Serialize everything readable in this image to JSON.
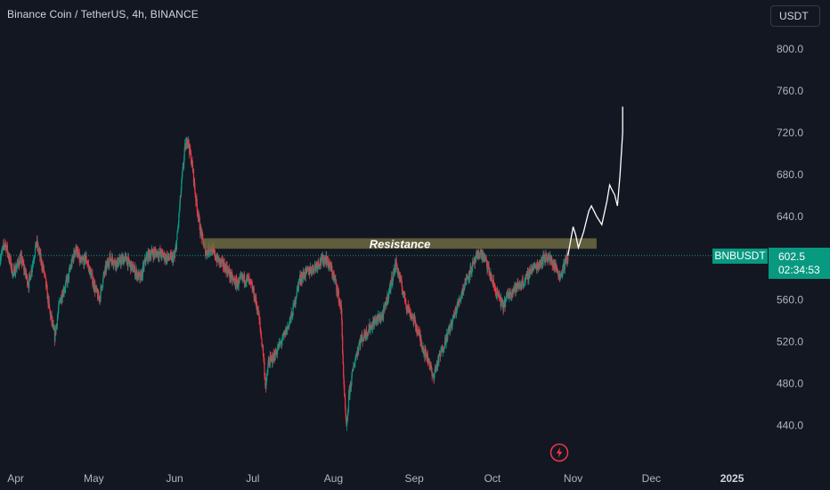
{
  "header": {
    "title": "Binance Coin / TetherUS, 4h, BINANCE",
    "currency": "USDT"
  },
  "last_price": {
    "symbol": "BNBUSDT",
    "price": "602.5",
    "countdown": "02:34:53"
  },
  "annotations": {
    "resistance_label": "Resistance",
    "resistance_low": 609,
    "resistance_high": 619
  },
  "colors": {
    "background": "#131722",
    "up": "#089981",
    "down": "#f23645",
    "resistance": "#6d6a3f",
    "axis_text": "#b2b5be",
    "projection": "#ffffff"
  },
  "icons": {
    "alert": "lightning-bolt-icon"
  },
  "chart_data": {
    "type": "candlestick",
    "title": "Binance Coin / TetherUS, 4h, BINANCE",
    "xlabel": "",
    "ylabel": "",
    "ylim": [
      402,
      847
    ],
    "y_ticks": [
      {
        "value": 800,
        "label": "800.0"
      },
      {
        "value": 760,
        "label": "760.0"
      },
      {
        "value": 720,
        "label": "720.0"
      },
      {
        "value": 680,
        "label": "680.0"
      },
      {
        "value": 640,
        "label": "640.0"
      },
      {
        "value": 560,
        "label": "560.0"
      },
      {
        "value": 520,
        "label": "520.0"
      },
      {
        "value": 480,
        "label": "480.0"
      },
      {
        "value": 440,
        "label": "440.0"
      }
    ],
    "x_range": [
      "2024-03-26",
      "2025-01-15"
    ],
    "x_ticks": [
      {
        "date": "2024-04-01",
        "label": "Apr",
        "bold": false
      },
      {
        "date": "2024-05-01",
        "label": "May",
        "bold": false
      },
      {
        "date": "2024-06-01",
        "label": "Jun",
        "bold": false
      },
      {
        "date": "2024-07-01",
        "label": "Jul",
        "bold": false
      },
      {
        "date": "2024-08-01",
        "label": "Aug",
        "bold": false
      },
      {
        "date": "2024-09-01",
        "label": "Sep",
        "bold": false
      },
      {
        "date": "2024-10-01",
        "label": "Oct",
        "bold": false
      },
      {
        "date": "2024-11-01",
        "label": "Nov",
        "bold": false
      },
      {
        "date": "2024-12-01",
        "label": "Dec",
        "bold": false
      },
      {
        "date": "2025-01-01",
        "label": "2025",
        "bold": true
      }
    ],
    "current_price": 602.5,
    "price_path": [
      [
        "2024-03-26",
        600
      ],
      [
        "2024-03-28",
        615
      ],
      [
        "2024-03-31",
        585
      ],
      [
        "2024-04-03",
        600
      ],
      [
        "2024-04-06",
        575
      ],
      [
        "2024-04-09",
        615
      ],
      [
        "2024-04-12",
        585
      ],
      [
        "2024-04-14",
        550
      ],
      [
        "2024-04-16",
        525
      ],
      [
        "2024-04-18",
        560
      ],
      [
        "2024-04-21",
        580
      ],
      [
        "2024-04-24",
        610
      ],
      [
        "2024-04-26",
        595
      ],
      [
        "2024-04-28",
        600
      ],
      [
        "2024-05-01",
        575
      ],
      [
        "2024-05-03",
        560
      ],
      [
        "2024-05-05",
        585
      ],
      [
        "2024-05-07",
        600
      ],
      [
        "2024-05-10",
        595
      ],
      [
        "2024-05-13",
        600
      ],
      [
        "2024-05-16",
        590
      ],
      [
        "2024-05-19",
        580
      ],
      [
        "2024-05-21",
        600
      ],
      [
        "2024-05-23",
        605
      ],
      [
        "2024-05-26",
        605
      ],
      [
        "2024-05-29",
        600
      ],
      [
        "2024-06-01",
        600
      ],
      [
        "2024-06-02",
        620
      ],
      [
        "2024-06-04",
        680
      ],
      [
        "2024-06-05",
        705
      ],
      [
        "2024-06-06",
        715
      ],
      [
        "2024-06-08",
        685
      ],
      [
        "2024-06-09",
        660
      ],
      [
        "2024-06-11",
        625
      ],
      [
        "2024-06-13",
        605
      ],
      [
        "2024-06-15",
        610
      ],
      [
        "2024-06-17",
        600
      ],
      [
        "2024-06-19",
        595
      ],
      [
        "2024-06-21",
        590
      ],
      [
        "2024-06-23",
        580
      ],
      [
        "2024-06-25",
        575
      ],
      [
        "2024-06-27",
        580
      ],
      [
        "2024-06-29",
        580
      ],
      [
        "2024-07-01",
        570
      ],
      [
        "2024-07-03",
        550
      ],
      [
        "2024-07-05",
        510
      ],
      [
        "2024-07-06",
        475
      ],
      [
        "2024-07-07",
        500
      ],
      [
        "2024-07-09",
        505
      ],
      [
        "2024-07-11",
        515
      ],
      [
        "2024-07-13",
        525
      ],
      [
        "2024-07-16",
        545
      ],
      [
        "2024-07-19",
        580
      ],
      [
        "2024-07-21",
        585
      ],
      [
        "2024-07-24",
        590
      ],
      [
        "2024-07-26",
        595
      ],
      [
        "2024-07-29",
        600
      ],
      [
        "2024-07-31",
        590
      ],
      [
        "2024-08-02",
        575
      ],
      [
        "2024-08-04",
        550
      ],
      [
        "2024-08-05",
        475
      ],
      [
        "2024-08-06",
        435
      ],
      [
        "2024-08-07",
        470
      ],
      [
        "2024-08-09",
        500
      ],
      [
        "2024-08-11",
        520
      ],
      [
        "2024-08-14",
        530
      ],
      [
        "2024-08-17",
        540
      ],
      [
        "2024-08-20",
        545
      ],
      [
        "2024-08-22",
        565
      ],
      [
        "2024-08-24",
        585
      ],
      [
        "2024-08-25",
        595
      ],
      [
        "2024-08-27",
        575
      ],
      [
        "2024-08-29",
        555
      ],
      [
        "2024-09-01",
        540
      ],
      [
        "2024-09-03",
        525
      ],
      [
        "2024-09-05",
        510
      ],
      [
        "2024-09-07",
        500
      ],
      [
        "2024-09-08",
        485
      ],
      [
        "2024-09-10",
        500
      ],
      [
        "2024-09-12",
        515
      ],
      [
        "2024-09-15",
        535
      ],
      [
        "2024-09-17",
        550
      ],
      [
        "2024-09-19",
        565
      ],
      [
        "2024-09-21",
        580
      ],
      [
        "2024-09-23",
        590
      ],
      [
        "2024-09-25",
        600
      ],
      [
        "2024-09-26",
        605
      ],
      [
        "2024-09-28",
        600
      ],
      [
        "2024-09-30",
        585
      ],
      [
        "2024-10-02",
        570
      ],
      [
        "2024-10-04",
        560
      ],
      [
        "2024-10-05",
        553
      ],
      [
        "2024-10-07",
        565
      ],
      [
        "2024-10-09",
        570
      ],
      [
        "2024-10-12",
        575
      ],
      [
        "2024-10-14",
        580
      ],
      [
        "2024-10-16",
        590
      ],
      [
        "2024-10-18",
        592
      ],
      [
        "2024-10-20",
        598
      ],
      [
        "2024-10-22",
        602
      ],
      [
        "2024-10-24",
        596
      ],
      [
        "2024-10-26",
        588
      ],
      [
        "2024-10-27",
        582
      ],
      [
        "2024-10-28",
        590
      ],
      [
        "2024-10-30",
        602
      ]
    ],
    "projection_path": [
      [
        "2024-10-30",
        602.5
      ],
      [
        "2024-11-01",
        630
      ],
      [
        "2024-11-02",
        622
      ],
      [
        "2024-11-03",
        610
      ],
      [
        "2024-11-05",
        625
      ],
      [
        "2024-11-07",
        645
      ],
      [
        "2024-11-08",
        650
      ],
      [
        "2024-11-10",
        640
      ],
      [
        "2024-11-12",
        632
      ],
      [
        "2024-11-14",
        655
      ],
      [
        "2024-11-15",
        670
      ],
      [
        "2024-11-17",
        660
      ],
      [
        "2024-11-18",
        650
      ],
      [
        "2024-11-19",
        680
      ],
      [
        "2024-11-20",
        720
      ],
      [
        "2024-11-20",
        745
      ]
    ]
  }
}
